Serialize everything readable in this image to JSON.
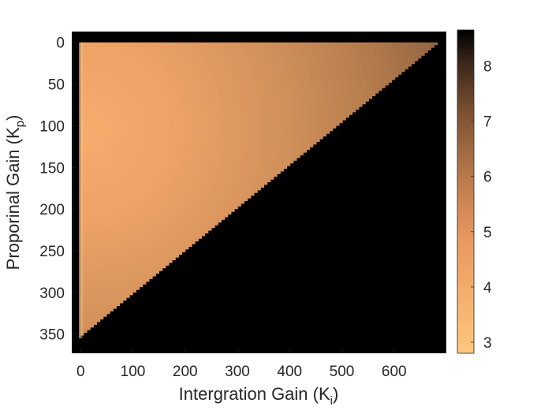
{
  "chart_data": {
    "type": "heatmap",
    "title": "",
    "xlabel": "Intergration Gain (K",
    "xlabel_sub": "i",
    "xlabel_close": ")",
    "ylabel": "Proporinal Gain (K",
    "ylabel_sub": "p",
    "ylabel_close": ")",
    "xlim": [
      -17,
      700
    ],
    "ylim": [
      -13,
      373
    ],
    "y_reversed": true,
    "x_ticks": [
      0,
      100,
      200,
      300,
      400,
      500,
      600
    ],
    "x_tick_labels": [
      "0",
      "100",
      "200",
      "300",
      "400",
      "500",
      "600"
    ],
    "y_ticks": [
      0,
      50,
      100,
      150,
      200,
      250,
      300,
      350
    ],
    "y_tick_labels": [
      "0",
      "50",
      "100",
      "150",
      "200",
      "250",
      "300",
      "350"
    ],
    "stable_region": {
      "description_boundary": "Kp = 355 * (1 - Ki / 690)",
      "ki_max": 690,
      "kp_max": 355,
      "value_min_near_ki0": 3.2,
      "value_max_near_boundary": 6.2
    },
    "unstable_value": 8.6,
    "colormap": "copper (reversed)",
    "colorbar": {
      "range": [
        2.8,
        8.65
      ],
      "ticks": [
        3,
        4,
        5,
        6,
        7,
        8
      ],
      "tick_labels": [
        "3",
        "4",
        "5",
        "6",
        "7",
        "8"
      ],
      "position": "right"
    },
    "grid": false,
    "background_color": "#000000"
  }
}
